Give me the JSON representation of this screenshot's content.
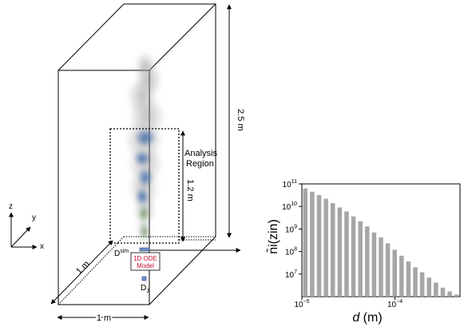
{
  "domain_figure": {
    "dimensions": {
      "height": "2.5 m",
      "width": "1 m",
      "depth": "1 m",
      "analysis_height": "1.2 m"
    },
    "labels": {
      "analysis_region_line1": "Analysis",
      "analysis_region_line2": "Region",
      "d_sim_base": "D",
      "d_sim_sub": "sim",
      "d_j_base": "D",
      "d_j_sub": "J",
      "ode_line1": "1D ODE",
      "ode_line2": "Model"
    },
    "axes_triad": {
      "x": "x",
      "y": "y",
      "z": "z"
    },
    "colors": {
      "ode_text": "#c8102e",
      "plume_core": "#2e5fa8",
      "plume_smoke": "#9a9a9a"
    }
  },
  "chart_data": {
    "type": "bar",
    "xscale": "log",
    "yscale": "log",
    "xlabel_italic": "d",
    "xlabel_unit": " (m)",
    "ylabel": "n̄i(zin)",
    "xlim": [
      1e-05,
      0.0005
    ],
    "ylim": [
      1000000.0,
      100000000000.0
    ],
    "x_ticks": [
      {
        "value": 1e-05,
        "base": "10",
        "exp": "−5"
      },
      {
        "value": 0.0001,
        "base": "10",
        "exp": "−4"
      },
      {
        "value": 0.001,
        "base": "10",
        "exp": "−3"
      }
    ],
    "y_ticks": [
      {
        "value": 10000000.0,
        "base": "10",
        "exp": "7"
      },
      {
        "value": 100000000.0,
        "base": "10",
        "exp": "8"
      },
      {
        "value": 1000000000.0,
        "base": "10",
        "exp": "9"
      },
      {
        "value": 10000000000.0,
        "base": "10",
        "exp": "10"
      },
      {
        "value": 100000000000.0,
        "base": "10",
        "exp": "11"
      }
    ],
    "bar_color": "#a6a6a6",
    "bars": [
      {
        "d": 1.3e-05,
        "n": 63000000000.0
      },
      {
        "d": 1.6e-05,
        "n": 45000000000.0
      },
      {
        "d": 2e-05,
        "n": 32000000000.0
      },
      {
        "d": 2.5e-05,
        "n": 22000000000.0
      },
      {
        "d": 3.2e-05,
        "n": 14000000000.0
      },
      {
        "d": 4e-05,
        "n": 9000000000.0
      },
      {
        "d": 5e-05,
        "n": 6000000000.0
      },
      {
        "d": 6.3e-05,
        "n": 3600000000.0
      },
      {
        "d": 7.9e-05,
        "n": 2200000000.0
      },
      {
        "d": 0.0001,
        "n": 1300000000.0
      },
      {
        "d": 0.000126,
        "n": 700000000.0
      },
      {
        "d": 0.000158,
        "n": 420000000.0
      },
      {
        "d": 0.0002,
        "n": 230000000.0
      },
      {
        "d": 0.000251,
        "n": 120000000.0
      },
      {
        "d": 0.000316,
        "n": 65000000.0
      },
      {
        "d": 0.000398,
        "n": 36000000.0
      },
      {
        "d": 0.000501,
        "n": 20000000.0
      },
      {
        "d": 0.000631,
        "n": 12000000.0
      },
      {
        "d": 0.000794,
        "n": 7000000.0
      },
      {
        "d": 0.001,
        "n": 4200000.0
      },
      {
        "d": 0.00126,
        "n": 2500000.0
      },
      {
        "d": 0.00158,
        "n": 1700000.0
      },
      {
        "d": 0.002,
        "n": 1250000.0
      }
    ]
  }
}
